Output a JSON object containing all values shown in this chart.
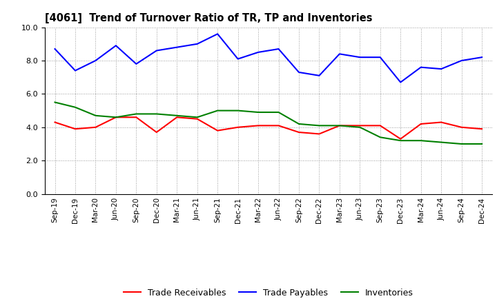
{
  "title": "[4061]  Trend of Turnover Ratio of TR, TP and Inventories",
  "x_labels": [
    "Sep-19",
    "Dec-19",
    "Mar-20",
    "Jun-20",
    "Sep-20",
    "Dec-20",
    "Mar-21",
    "Jun-21",
    "Sep-21",
    "Dec-21",
    "Mar-22",
    "Jun-22",
    "Sep-22",
    "Dec-22",
    "Mar-23",
    "Jun-23",
    "Sep-23",
    "Dec-23",
    "Mar-24",
    "Jun-24",
    "Sep-24",
    "Dec-24"
  ],
  "trade_receivables": [
    4.3,
    3.9,
    4.0,
    4.6,
    4.6,
    3.7,
    4.6,
    4.5,
    3.8,
    4.0,
    4.1,
    4.1,
    3.7,
    3.6,
    4.1,
    4.1,
    4.1,
    3.3,
    4.2,
    4.3,
    4.0,
    3.9
  ],
  "trade_payables": [
    8.7,
    7.4,
    8.0,
    8.9,
    7.8,
    8.6,
    8.8,
    9.0,
    9.6,
    8.1,
    8.5,
    8.7,
    7.3,
    7.1,
    8.4,
    8.2,
    8.2,
    6.7,
    7.6,
    7.5,
    8.0,
    8.2
  ],
  "inventories": [
    5.5,
    5.2,
    4.7,
    4.6,
    4.8,
    4.8,
    4.7,
    4.6,
    5.0,
    5.0,
    4.9,
    4.9,
    4.2,
    4.1,
    4.1,
    4.0,
    3.4,
    3.2,
    3.2,
    3.1,
    3.0,
    3.0
  ],
  "ylim": [
    0.0,
    10.0
  ],
  "yticks": [
    0.0,
    2.0,
    4.0,
    6.0,
    8.0,
    10.0
  ],
  "tr_color": "#ff0000",
  "tp_color": "#0000ff",
  "inv_color": "#008000",
  "line_width": 1.5,
  "legend_tr": "Trade Receivables",
  "legend_tp": "Trade Payables",
  "legend_inv": "Inventories",
  "bg_color": "#ffffff",
  "grid_color": "#999999"
}
